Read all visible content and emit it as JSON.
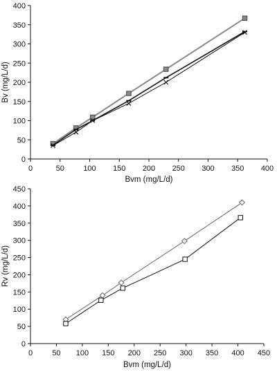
{
  "chart_data": [
    {
      "type": "line",
      "xlabel": "Bvm (mg/L/d)",
      "ylabel": "Bv (mg/L/d)",
      "xlim": [
        0,
        400
      ],
      "ylim": [
        0,
        400
      ],
      "xticks": [
        0,
        50,
        100,
        150,
        200,
        250,
        300,
        350,
        400
      ],
      "yticks": [
        0,
        50,
        100,
        150,
        200,
        250,
        300,
        350,
        400
      ],
      "grid": false,
      "series": [
        {
          "marker": "filled-square",
          "color": "#777777",
          "x": [
            38,
            77,
            105,
            166,
            229,
            362
          ],
          "y": [
            40,
            81,
            109,
            171,
            234,
            367
          ]
        },
        {
          "marker": "dash",
          "color": "#111111",
          "x": [
            38,
            77,
            105,
            166,
            229,
            362
          ],
          "y": [
            36,
            77,
            100,
            152,
            212,
            332
          ]
        },
        {
          "marker": "x",
          "color": "#111111",
          "x": [
            38,
            77,
            105,
            166,
            229,
            362
          ],
          "y": [
            35,
            70,
            100,
            145,
            200,
            330
          ]
        }
      ]
    },
    {
      "type": "line",
      "xlabel": "Bvm (mg/L/d)",
      "ylabel": "Rv (mg/L/d)",
      "xlim": [
        0,
        450
      ],
      "ylim": [
        0,
        450
      ],
      "xticks": [
        0,
        50,
        100,
        150,
        200,
        250,
        300,
        350,
        400,
        450
      ],
      "yticks": [
        0,
        50,
        100,
        150,
        200,
        250,
        300,
        350,
        400,
        450
      ],
      "grid": false,
      "series": [
        {
          "marker": "open-diamond",
          "color": "#666666",
          "x": [
            68,
            139,
            175,
            297,
            408
          ],
          "y": [
            70,
            140,
            177,
            298,
            410
          ]
        },
        {
          "marker": "open-square",
          "color": "#111111",
          "x": [
            68,
            136,
            178,
            298,
            405
          ],
          "y": [
            58,
            126,
            161,
            245,
            366
          ]
        }
      ]
    }
  ]
}
